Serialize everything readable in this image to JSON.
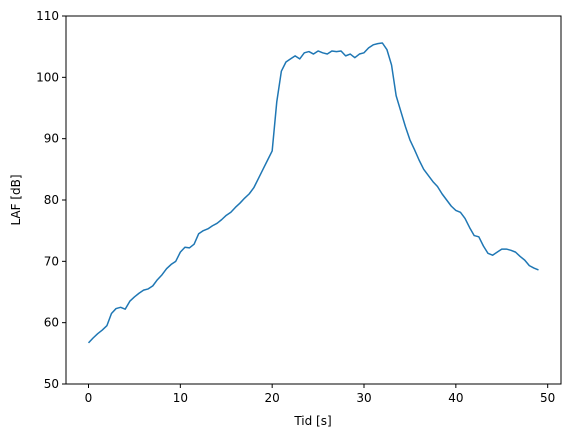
{
  "chart_data": {
    "type": "line",
    "xlabel": "Tid [s]",
    "ylabel": "LAF [dB]",
    "x": [
      0,
      0.5,
      1,
      1.5,
      2,
      2.5,
      3,
      3.5,
      4,
      4.5,
      5,
      5.5,
      6,
      6.5,
      7,
      7.5,
      8,
      8.5,
      9,
      9.5,
      10,
      10.5,
      11,
      11.5,
      12,
      12.5,
      13,
      13.5,
      14,
      14.5,
      15,
      15.5,
      16,
      16.5,
      17,
      17.5,
      18,
      18.5,
      19,
      19.5,
      20,
      20.5,
      21,
      21.5,
      22,
      22.5,
      23,
      23.5,
      24,
      24.5,
      25,
      25.5,
      26,
      26.5,
      27,
      27.5,
      28,
      28.5,
      29,
      29.5,
      30,
      30.5,
      31,
      31.5,
      32,
      32.5,
      33,
      33.5,
      34,
      34.5,
      35,
      35.5,
      36,
      36.5,
      37,
      37.5,
      38,
      38.5,
      39,
      39.5,
      40,
      40.5,
      41,
      41.5,
      42,
      42.5,
      43,
      43.5,
      44,
      44.5,
      45,
      45.5,
      46,
      46.5,
      47,
      47.5,
      48,
      48.5,
      49
    ],
    "series": [
      {
        "name": "LAF",
        "color": "#1f77b4",
        "values": [
          56.7,
          57.5,
          58.2,
          58.8,
          59.5,
          61.5,
          62.3,
          62.5,
          62.2,
          63.5,
          64.2,
          64.8,
          65.3,
          65.5,
          66,
          67,
          67.8,
          68.8,
          69.5,
          70,
          71.5,
          72.3,
          72.2,
          72.8,
          74.5,
          75,
          75.3,
          75.8,
          76.2,
          76.8,
          77.5,
          78,
          78.8,
          79.5,
          80.3,
          81,
          82,
          83.5,
          85,
          86.5,
          88,
          96,
          101,
          102.5,
          103,
          103.5,
          103,
          104,
          104.2,
          103.8,
          104.3,
          104,
          103.8,
          104.3,
          104.2,
          104.3,
          103.5,
          103.8,
          103.2,
          103.8,
          104,
          104.8,
          105.3,
          105.5,
          105.6,
          104.5,
          102,
          97,
          94.5,
          92,
          89.8,
          88.2,
          86.5,
          85,
          84,
          83,
          82.2,
          81,
          80,
          79,
          78.3,
          78,
          77,
          75.5,
          74.2,
          74,
          72.5,
          71.3,
          71,
          71.5,
          72,
          72,
          71.8,
          71.5,
          70.8,
          70.2,
          69.3,
          68.9,
          68.6
        ]
      }
    ],
    "xlim": [
      -2.45,
      51.45
    ],
    "xticks": [
      0,
      10,
      20,
      30,
      40,
      50
    ],
    "ylim": [
      50,
      110
    ],
    "yticks": [
      50,
      60,
      70,
      80,
      90,
      100,
      110
    ]
  }
}
